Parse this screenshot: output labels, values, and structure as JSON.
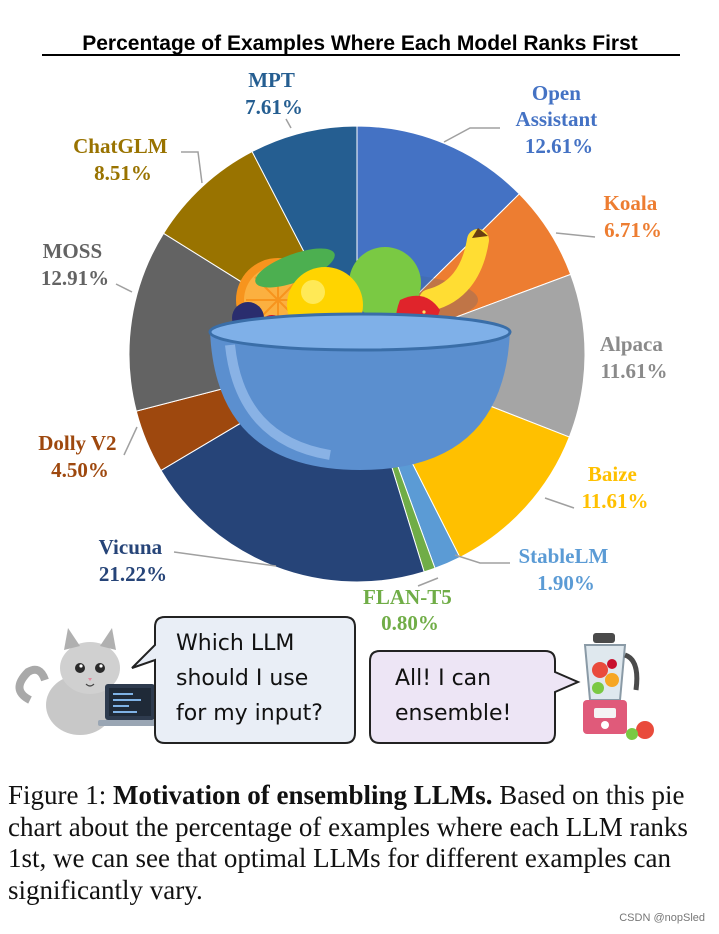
{
  "chart_data": {
    "type": "pie",
    "title": "Percentage of Examples Where Each Model Ranks First",
    "slices": [
      {
        "name": "Open Assistant",
        "label_lines": [
          "Open",
          "Assistant"
        ],
        "value": 12.61,
        "value_label": "12.61%",
        "color": "#4472C4"
      },
      {
        "name": "Koala",
        "label_lines": [
          "Koala"
        ],
        "value": 6.71,
        "value_label": "6.71%",
        "color": "#ED7D31"
      },
      {
        "name": "Alpaca",
        "label_lines": [
          "Alpaca"
        ],
        "value": 11.61,
        "value_label": "11.61%",
        "color": "#A5A5A5"
      },
      {
        "name": "Baize",
        "label_lines": [
          "Baize"
        ],
        "value": 11.61,
        "value_label": "11.61%",
        "color": "#FFC000"
      },
      {
        "name": "StableLM",
        "label_lines": [
          "StableLM"
        ],
        "value": 1.9,
        "value_label": "1.90%",
        "color": "#5B9BD5"
      },
      {
        "name": "FLAN-T5",
        "label_lines": [
          "FLAN-T5"
        ],
        "value": 0.8,
        "value_label": "0.80%",
        "color": "#70AD47"
      },
      {
        "name": "Vicuna",
        "label_lines": [
          "Vicuna"
        ],
        "value": 21.22,
        "value_label": "21.22%",
        "color": "#264478"
      },
      {
        "name": "Dolly V2",
        "label_lines": [
          "Dolly V2"
        ],
        "value": 4.5,
        "value_label": "4.50%",
        "color": "#9E480E"
      },
      {
        "name": "MOSS",
        "label_lines": [
          "MOSS"
        ],
        "value": 12.91,
        "value_label": "12.91%",
        "color": "#636363"
      },
      {
        "name": "ChatGLM",
        "label_lines": [
          "ChatGLM"
        ],
        "value": 8.51,
        "value_label": "8.51%",
        "color": "#997300"
      },
      {
        "name": "MPT",
        "label_lines": [
          "MPT"
        ],
        "value": 7.61,
        "value_label": "7.61%",
        "color": "#255E91"
      }
    ]
  },
  "illustration": {
    "cat_bubble_lines": [
      "Which LLM",
      "should I use",
      "for my input?"
    ],
    "blender_bubble_lines": [
      "All! I can",
      "ensemble!"
    ]
  },
  "caption": {
    "figure_label": "Figure 1:",
    "bold_text": "Motivation of ensembling LLMs.",
    "body_text": "Based on this pie chart about the percentage of examples where each LLM ranks 1st, we can see that optimal LLMs for different examples can significantly vary."
  },
  "watermark": "CSDN @nopSled"
}
